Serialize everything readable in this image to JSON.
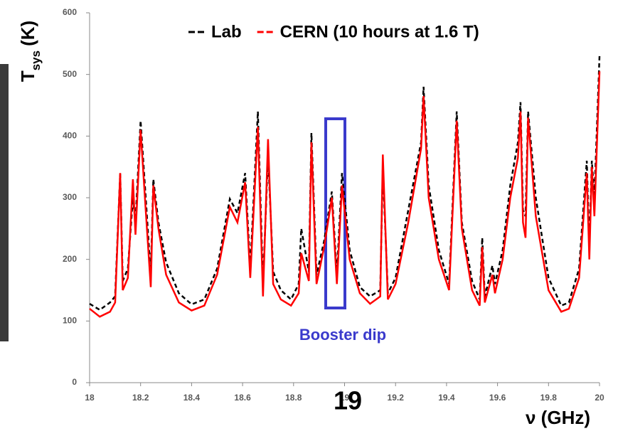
{
  "chart_data": {
    "type": "line",
    "legend_title": "",
    "y_label_main": "T",
    "y_label_sub": "sys",
    "y_label_unit": "(K)",
    "x_label": "ν (GHz)",
    "annotation": "Booster dip",
    "page_number": "19",
    "xlim": [
      18,
      20
    ],
    "ylim": [
      0,
      600
    ],
    "xticks": [
      18,
      18.2,
      18.4,
      18.6,
      18.8,
      19,
      19.2,
      19.4,
      19.6,
      19.8,
      20
    ],
    "yticks": [
      0,
      100,
      200,
      300,
      400,
      500,
      600
    ],
    "x": [
      18.0,
      18.04,
      18.08,
      18.1,
      18.12,
      18.13,
      18.15,
      18.17,
      18.18,
      18.2,
      18.22,
      18.24,
      18.25,
      18.27,
      18.3,
      18.35,
      18.4,
      18.45,
      18.5,
      18.55,
      18.58,
      18.61,
      18.63,
      18.66,
      18.68,
      18.7,
      18.72,
      18.75,
      18.79,
      18.82,
      18.83,
      18.86,
      18.87,
      18.89,
      18.92,
      18.95,
      18.97,
      18.99,
      19.02,
      19.06,
      19.1,
      19.14,
      19.15,
      19.17,
      19.2,
      19.25,
      19.3,
      19.31,
      19.33,
      19.37,
      19.41,
      19.44,
      19.46,
      19.5,
      19.53,
      19.54,
      19.55,
      19.58,
      19.59,
      19.62,
      19.65,
      19.68,
      19.69,
      19.7,
      19.71,
      19.72,
      19.75,
      19.8,
      19.85,
      19.88,
      19.92,
      19.95,
      19.96,
      19.97,
      19.98,
      20.0
    ],
    "series": [
      {
        "name": "Lab",
        "color": "#000000",
        "dashed": true,
        "values": [
          128,
          118,
          130,
          140,
          340,
          165,
          185,
          300,
          260,
          425,
          300,
          175,
          330,
          260,
          195,
          145,
          127,
          135,
          185,
          298,
          275,
          340,
          185,
          440,
          160,
          370,
          180,
          150,
          135,
          160,
          250,
          180,
          405,
          175,
          230,
          310,
          175,
          340,
          215,
          155,
          140,
          150,
          350,
          145,
          170,
          280,
          390,
          480,
          320,
          215,
          160,
          440,
          260,
          165,
          135,
          235,
          140,
          190,
          160,
          215,
          320,
          390,
          455,
          280,
          270,
          440,
          300,
          170,
          125,
          130,
          185,
          360,
          220,
          360,
          300,
          530
        ]
      },
      {
        "name": "CERN (10 hours at 1.6 T)",
        "color": "#ff0000",
        "dashed": false,
        "values": [
          120,
          107,
          115,
          130,
          340,
          150,
          170,
          330,
          240,
          410,
          280,
          155,
          320,
          250,
          175,
          130,
          117,
          125,
          175,
          285,
          260,
          325,
          170,
          415,
          140,
          395,
          160,
          135,
          125,
          145,
          210,
          165,
          390,
          160,
          220,
          300,
          160,
          320,
          200,
          145,
          128,
          140,
          370,
          135,
          160,
          260,
          380,
          465,
          300,
          200,
          150,
          425,
          250,
          150,
          125,
          220,
          130,
          175,
          145,
          200,
          300,
          365,
          440,
          260,
          235,
          430,
          270,
          150,
          115,
          120,
          170,
          340,
          200,
          350,
          270,
          505
        ]
      }
    ]
  }
}
